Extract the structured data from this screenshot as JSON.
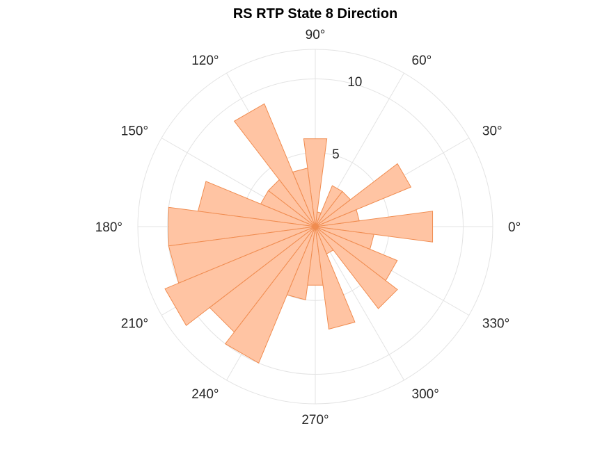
{
  "chart_data": {
    "type": "polar-histogram",
    "title": "RS  RTP State 8 Direction",
    "angle_unit": "degrees",
    "angle_ticks": [
      0,
      30,
      60,
      90,
      120,
      150,
      180,
      210,
      240,
      270,
      300,
      330
    ],
    "angle_tick_labels": [
      "0°",
      "30°",
      "60°",
      "90°",
      "120°",
      "150°",
      "180°",
      "210°",
      "240°",
      "270°",
      "300°",
      "330°"
    ],
    "radial_ticks": [
      5,
      10
    ],
    "radial_tick_labels": [
      "5",
      "10"
    ],
    "rlim": [
      0,
      12
    ],
    "grid": true,
    "bin_width_deg": 15,
    "bin_centers_deg": [
      0,
      15,
      30,
      45,
      60,
      75,
      90,
      105,
      120,
      135,
      150,
      165,
      180,
      195,
      210,
      225,
      240,
      255,
      270,
      285,
      300,
      315,
      330,
      345
    ],
    "values": [
      8,
      3,
      7,
      3,
      3,
      1,
      6,
      4,
      9,
      4,
      4,
      8,
      10,
      10,
      11,
      9,
      10,
      5,
      4,
      7,
      2,
      7,
      6,
      4
    ],
    "fill_color": "#ffc4a3",
    "edge_color": "#f08c50"
  }
}
